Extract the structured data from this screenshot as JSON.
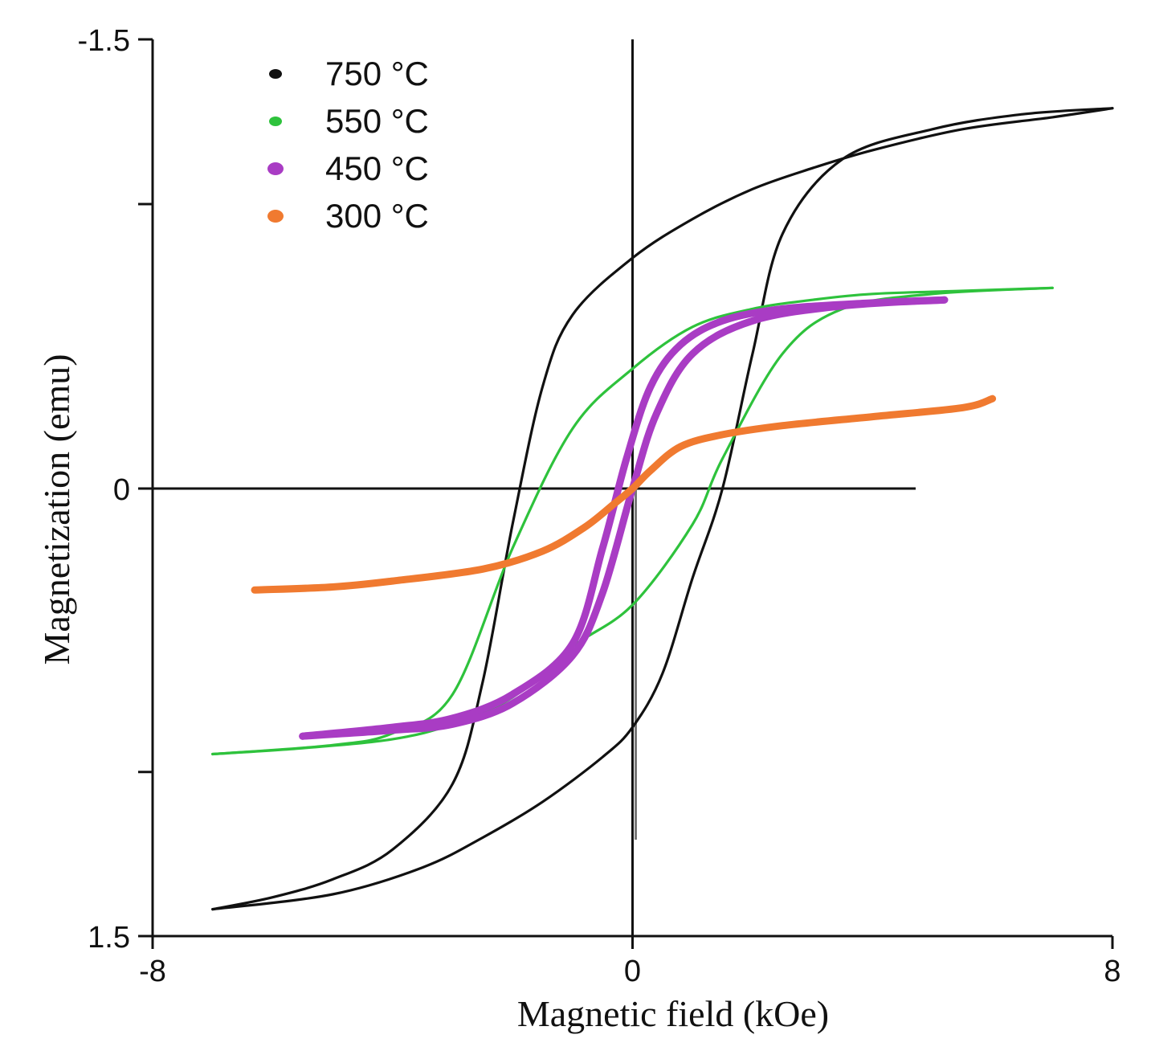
{
  "chart_data": {
    "type": "line",
    "title": "",
    "xlabel": "Magnetic field (kOe)",
    "ylabel": "Magnetization (emu)",
    "xlim": [
      -8,
      8
    ],
    "ylim": [
      -1.5,
      1.5
    ],
    "y_inverted": true,
    "x_ticks": [
      -8,
      0,
      8
    ],
    "x_tick_labels": [
      "-8",
      "0",
      "8"
    ],
    "y_ticks": [
      -1.5,
      -0.95,
      0,
      0.95,
      1.5
    ],
    "y_tick_labels": [
      "-1.5",
      "",
      "0",
      "",
      "1.5"
    ],
    "grid": false,
    "legend_position": "top-left",
    "series": [
      {
        "name": "750 °C",
        "color": "#111111",
        "width_class": "thin",
        "upper_branch": [
          [
            -7.0,
            1.41
          ],
          [
            -6.0,
            1.37
          ],
          [
            -5.0,
            1.31
          ],
          [
            -4.0,
            1.21
          ],
          [
            -3.0,
            0.99
          ],
          [
            -2.5,
            0.65
          ],
          [
            -2.0,
            0.12
          ],
          [
            -1.5,
            -0.34
          ],
          [
            -1.0,
            -0.58
          ],
          [
            0.0,
            -0.77
          ],
          [
            1.0,
            -0.9
          ],
          [
            2.0,
            -1.0
          ],
          [
            3.0,
            -1.07
          ],
          [
            4.0,
            -1.13
          ],
          [
            5.5,
            -1.2
          ],
          [
            7.0,
            -1.24
          ],
          [
            8.0,
            -1.27
          ]
        ],
        "lower_branch": [
          [
            -7.0,
            1.41
          ],
          [
            -5.0,
            1.36
          ],
          [
            -3.5,
            1.27
          ],
          [
            -2.5,
            1.17
          ],
          [
            -1.5,
            1.05
          ],
          [
            -0.5,
            0.9
          ],
          [
            0.0,
            0.8
          ],
          [
            0.5,
            0.62
          ],
          [
            1.0,
            0.3
          ],
          [
            1.5,
            0.0
          ],
          [
            2.0,
            -0.45
          ],
          [
            2.5,
            -0.85
          ],
          [
            3.5,
            -1.1
          ],
          [
            5.0,
            -1.2
          ],
          [
            6.5,
            -1.25
          ],
          [
            8.0,
            -1.27
          ]
        ]
      },
      {
        "name": "550 °C",
        "color": "#2ec23c",
        "width_class": "thin",
        "upper_branch": [
          [
            -7.0,
            0.89
          ],
          [
            -5.0,
            0.86
          ],
          [
            -4.0,
            0.82
          ],
          [
            -3.0,
            0.69
          ],
          [
            -2.0,
            0.2
          ],
          [
            -1.0,
            -0.2
          ],
          [
            0.0,
            -0.4
          ],
          [
            1.0,
            -0.54
          ],
          [
            2.0,
            -0.6
          ],
          [
            3.0,
            -0.63
          ],
          [
            4.0,
            -0.65
          ],
          [
            5.5,
            -0.66
          ],
          [
            7.0,
            -0.67
          ]
        ],
        "lower_branch": [
          [
            -7.0,
            0.89
          ],
          [
            -5.5,
            0.87
          ],
          [
            -4.0,
            0.84
          ],
          [
            -3.0,
            0.79
          ],
          [
            -2.0,
            0.7
          ],
          [
            -1.0,
            0.53
          ],
          [
            0.0,
            0.39
          ],
          [
            1.0,
            0.12
          ],
          [
            1.5,
            -0.1
          ],
          [
            2.5,
            -0.45
          ],
          [
            3.5,
            -0.6
          ],
          [
            5.0,
            -0.65
          ],
          [
            7.0,
            -0.67
          ]
        ]
      },
      {
        "name": "450 °C",
        "color": "#a93cc4",
        "width_class": "thick",
        "upper_branch": [
          [
            -5.5,
            0.83
          ],
          [
            -4.0,
            0.8
          ],
          [
            -3.0,
            0.77
          ],
          [
            -2.0,
            0.69
          ],
          [
            -1.0,
            0.52
          ],
          [
            -0.5,
            0.2
          ],
          [
            -0.1,
            -0.1
          ],
          [
            0.3,
            -0.34
          ],
          [
            0.8,
            -0.48
          ],
          [
            1.5,
            -0.56
          ],
          [
            2.5,
            -0.6
          ],
          [
            4.0,
            -0.62
          ],
          [
            5.2,
            -0.63
          ]
        ],
        "lower_branch": [
          [
            -5.5,
            0.83
          ],
          [
            -4.0,
            0.81
          ],
          [
            -3.0,
            0.79
          ],
          [
            -2.0,
            0.72
          ],
          [
            -1.0,
            0.56
          ],
          [
            -0.5,
            0.35
          ],
          [
            0.0,
            0.0
          ],
          [
            0.4,
            -0.25
          ],
          [
            1.0,
            -0.45
          ],
          [
            2.0,
            -0.56
          ],
          [
            3.5,
            -0.61
          ],
          [
            5.2,
            -0.63
          ]
        ]
      },
      {
        "name": "300 °C",
        "color": "#f07a30",
        "width_class": "thick",
        "upper_branch": [
          [
            -6.3,
            0.34
          ],
          [
            -5.0,
            0.33
          ],
          [
            -4.0,
            0.31
          ],
          [
            -2.5,
            0.27
          ],
          [
            -1.5,
            0.21
          ],
          [
            -0.8,
            0.13
          ],
          [
            -0.3,
            0.05
          ],
          [
            0.0,
            0.0
          ],
          [
            0.3,
            -0.06
          ],
          [
            0.8,
            -0.14
          ],
          [
            1.5,
            -0.18
          ],
          [
            2.5,
            -0.21
          ],
          [
            4.0,
            -0.24
          ],
          [
            5.5,
            -0.27
          ],
          [
            6.0,
            -0.3
          ]
        ],
        "lower_branch": []
      }
    ]
  }
}
